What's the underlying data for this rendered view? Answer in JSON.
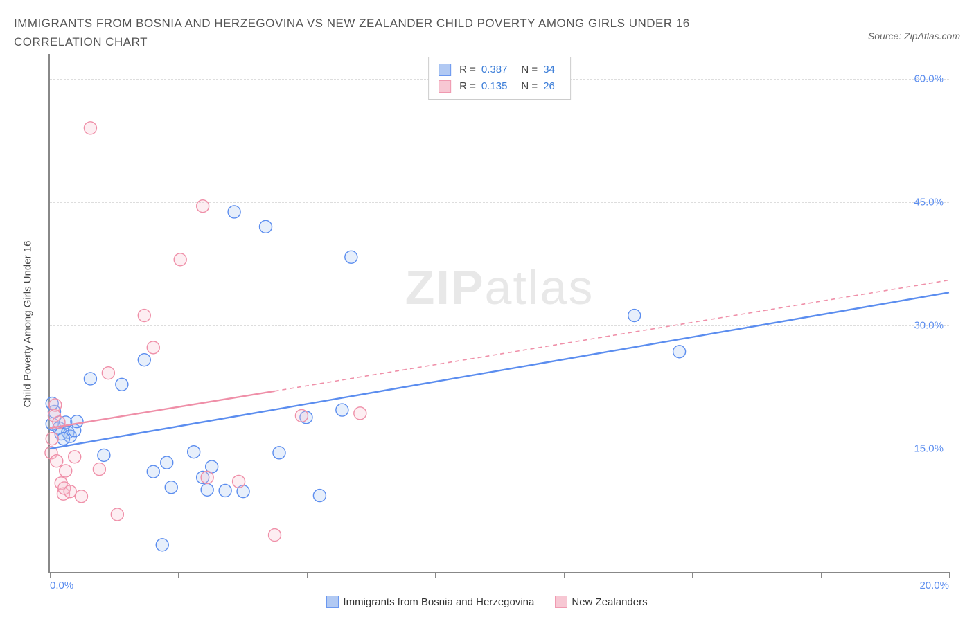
{
  "title": "IMMIGRANTS FROM BOSNIA AND HERZEGOVINA VS NEW ZEALANDER CHILD POVERTY AMONG GIRLS UNDER 16 CORRELATION CHART",
  "source": "Source: ZipAtlas.com",
  "watermark_bold": "ZIP",
  "watermark_rest": "atlas",
  "y_axis_label": "Child Poverty Among Girls Under 16",
  "chart": {
    "type": "scatter",
    "xlim": [
      0,
      20
    ],
    "ylim": [
      0,
      63
    ],
    "x_ticks": [
      0,
      2.857,
      5.714,
      8.571,
      11.428,
      14.285,
      17.142,
      20
    ],
    "x_tick_labels": {
      "0": "0.0%",
      "20": "20.0%"
    },
    "y_gridlines": [
      15,
      30,
      45,
      60
    ],
    "y_tick_labels": {
      "15": "15.0%",
      "30": "30.0%",
      "45": "45.0%",
      "60": "60.0%"
    },
    "background_color": "#ffffff",
    "grid_color": "#dddddd",
    "axis_color": "#888888",
    "tick_label_color": "#5b8def",
    "marker_radius": 9,
    "marker_stroke_width": 1.4,
    "marker_fill_opacity": 0.28,
    "line_width_solid": 2.4,
    "line_width_dash": 1.6,
    "dash_pattern": "6,5"
  },
  "series": [
    {
      "key": "bosnia",
      "label": "Immigrants from Bosnia and Herzegovina",
      "color_stroke": "#5b8def",
      "color_fill": "#a9c4f2",
      "R": "0.387",
      "N": "34",
      "regression": {
        "x1": 0,
        "y1": 15,
        "x2": 20,
        "y2": 34,
        "dash_from_x": null
      },
      "points": [
        [
          0.05,
          18
        ],
        [
          0.1,
          19.5
        ],
        [
          0.2,
          17.5
        ],
        [
          0.25,
          16.8
        ],
        [
          0.35,
          18.2
        ],
        [
          0.4,
          17
        ],
        [
          0.45,
          16.5
        ],
        [
          0.55,
          17.2
        ],
        [
          0.6,
          18.3
        ],
        [
          0.9,
          23.5
        ],
        [
          1.2,
          14.2
        ],
        [
          1.6,
          22.8
        ],
        [
          2.1,
          25.8
        ],
        [
          2.3,
          12.2
        ],
        [
          2.5,
          3.3
        ],
        [
          2.6,
          13.3
        ],
        [
          2.7,
          10.3
        ],
        [
          3.2,
          14.6
        ],
        [
          3.4,
          11.5
        ],
        [
          3.5,
          10.0
        ],
        [
          3.6,
          12.8
        ],
        [
          3.9,
          9.9
        ],
        [
          4.1,
          43.8
        ],
        [
          4.3,
          9.8
        ],
        [
          5.1,
          14.5
        ],
        [
          5.7,
          18.8
        ],
        [
          6.0,
          9.3
        ],
        [
          6.5,
          19.7
        ],
        [
          6.7,
          38.3
        ],
        [
          13.0,
          31.2
        ],
        [
          14.0,
          26.8
        ],
        [
          0.05,
          20.5
        ],
        [
          0.3,
          16.2
        ],
        [
          4.8,
          42.0
        ]
      ]
    },
    {
      "key": "nz",
      "label": "New Zealanders",
      "color_stroke": "#ef8fa8",
      "color_fill": "#f7c2cf",
      "R": "0.135",
      "N": "26",
      "regression": {
        "x1": 0,
        "y1": 17.5,
        "x2": 20,
        "y2": 35.5,
        "dash_from_x": 5.0
      },
      "points": [
        [
          0.03,
          14.5
        ],
        [
          0.05,
          16.2
        ],
        [
          0.1,
          19
        ],
        [
          0.12,
          20.3
        ],
        [
          0.15,
          13.5
        ],
        [
          0.2,
          18.2
        ],
        [
          0.25,
          10.8
        ],
        [
          0.3,
          9.5
        ],
        [
          0.32,
          10.2
        ],
        [
          0.35,
          12.3
        ],
        [
          0.7,
          9.2
        ],
        [
          0.9,
          54.0
        ],
        [
          1.1,
          12.5
        ],
        [
          1.3,
          24.2
        ],
        [
          1.5,
          7.0
        ],
        [
          2.1,
          31.2
        ],
        [
          2.3,
          27.3
        ],
        [
          2.9,
          38.0
        ],
        [
          3.4,
          44.5
        ],
        [
          3.5,
          11.5
        ],
        [
          4.2,
          11.0
        ],
        [
          5.0,
          4.5
        ],
        [
          5.6,
          19.0
        ],
        [
          6.9,
          19.3
        ],
        [
          0.45,
          9.8
        ],
        [
          0.55,
          14.0
        ]
      ]
    }
  ],
  "legend_top": {
    "r_label": "R =",
    "n_label": "N ="
  }
}
